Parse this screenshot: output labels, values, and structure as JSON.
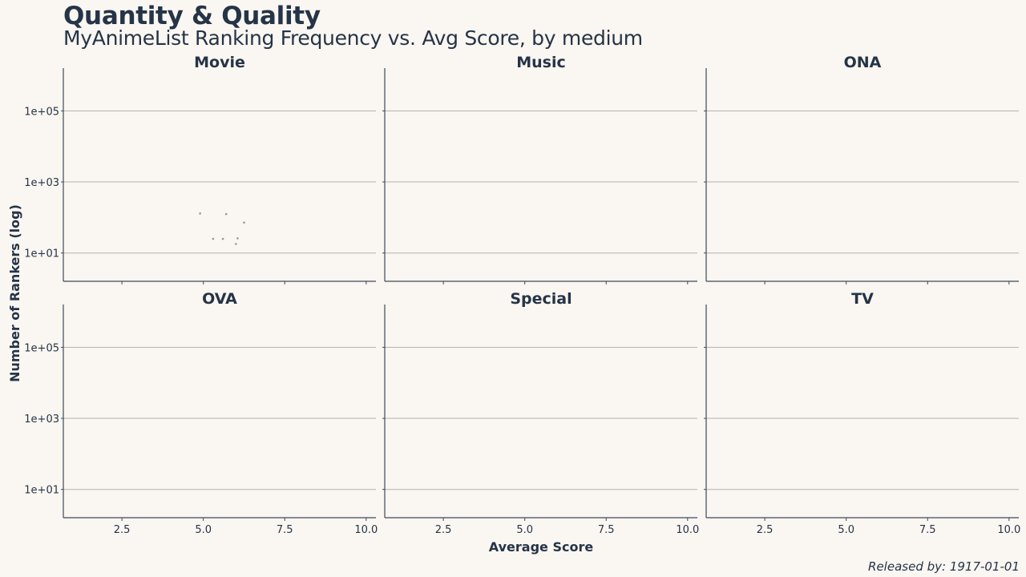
{
  "header": {
    "title": "Quantity & Quality",
    "subtitle": "MyAnimeList Ranking Frequency vs. Avg Score, by medium",
    "caption": "Released by: 1917-01-01"
  },
  "chart_data": {
    "type": "scatter",
    "facet_by": "medium",
    "facets": [
      "Movie",
      "Music",
      "ONA",
      "OVA",
      "Special",
      "TV"
    ],
    "xlabel": "Average Score",
    "ylabel": "Number of Rankers (log)",
    "xlim": [
      0.7,
      10.3
    ],
    "xticks": [
      2.5,
      5.0,
      7.5,
      10.0
    ],
    "xtick_labels": [
      "2.5",
      "5.0",
      "7.5",
      "10.0"
    ],
    "y_scale": "log10",
    "ylim": [
      1.6,
      1600000
    ],
    "yticks": [
      10,
      1000,
      100000
    ],
    "ytick_labels": [
      "1e+01",
      "1e+03",
      "1e+05"
    ],
    "grid": "horizontal",
    "series": [
      {
        "facet": "Movie",
        "points": [
          {
            "x": 4.9,
            "y": 130
          },
          {
            "x": 5.7,
            "y": 125
          },
          {
            "x": 6.25,
            "y": 72
          },
          {
            "x": 5.3,
            "y": 25
          },
          {
            "x": 5.6,
            "y": 25
          },
          {
            "x": 6.05,
            "y": 26
          },
          {
            "x": 6.0,
            "y": 18
          }
        ]
      },
      {
        "facet": "Music",
        "points": []
      },
      {
        "facet": "ONA",
        "points": []
      },
      {
        "facet": "OVA",
        "points": []
      },
      {
        "facet": "Special",
        "points": []
      },
      {
        "facet": "TV",
        "points": []
      }
    ]
  }
}
